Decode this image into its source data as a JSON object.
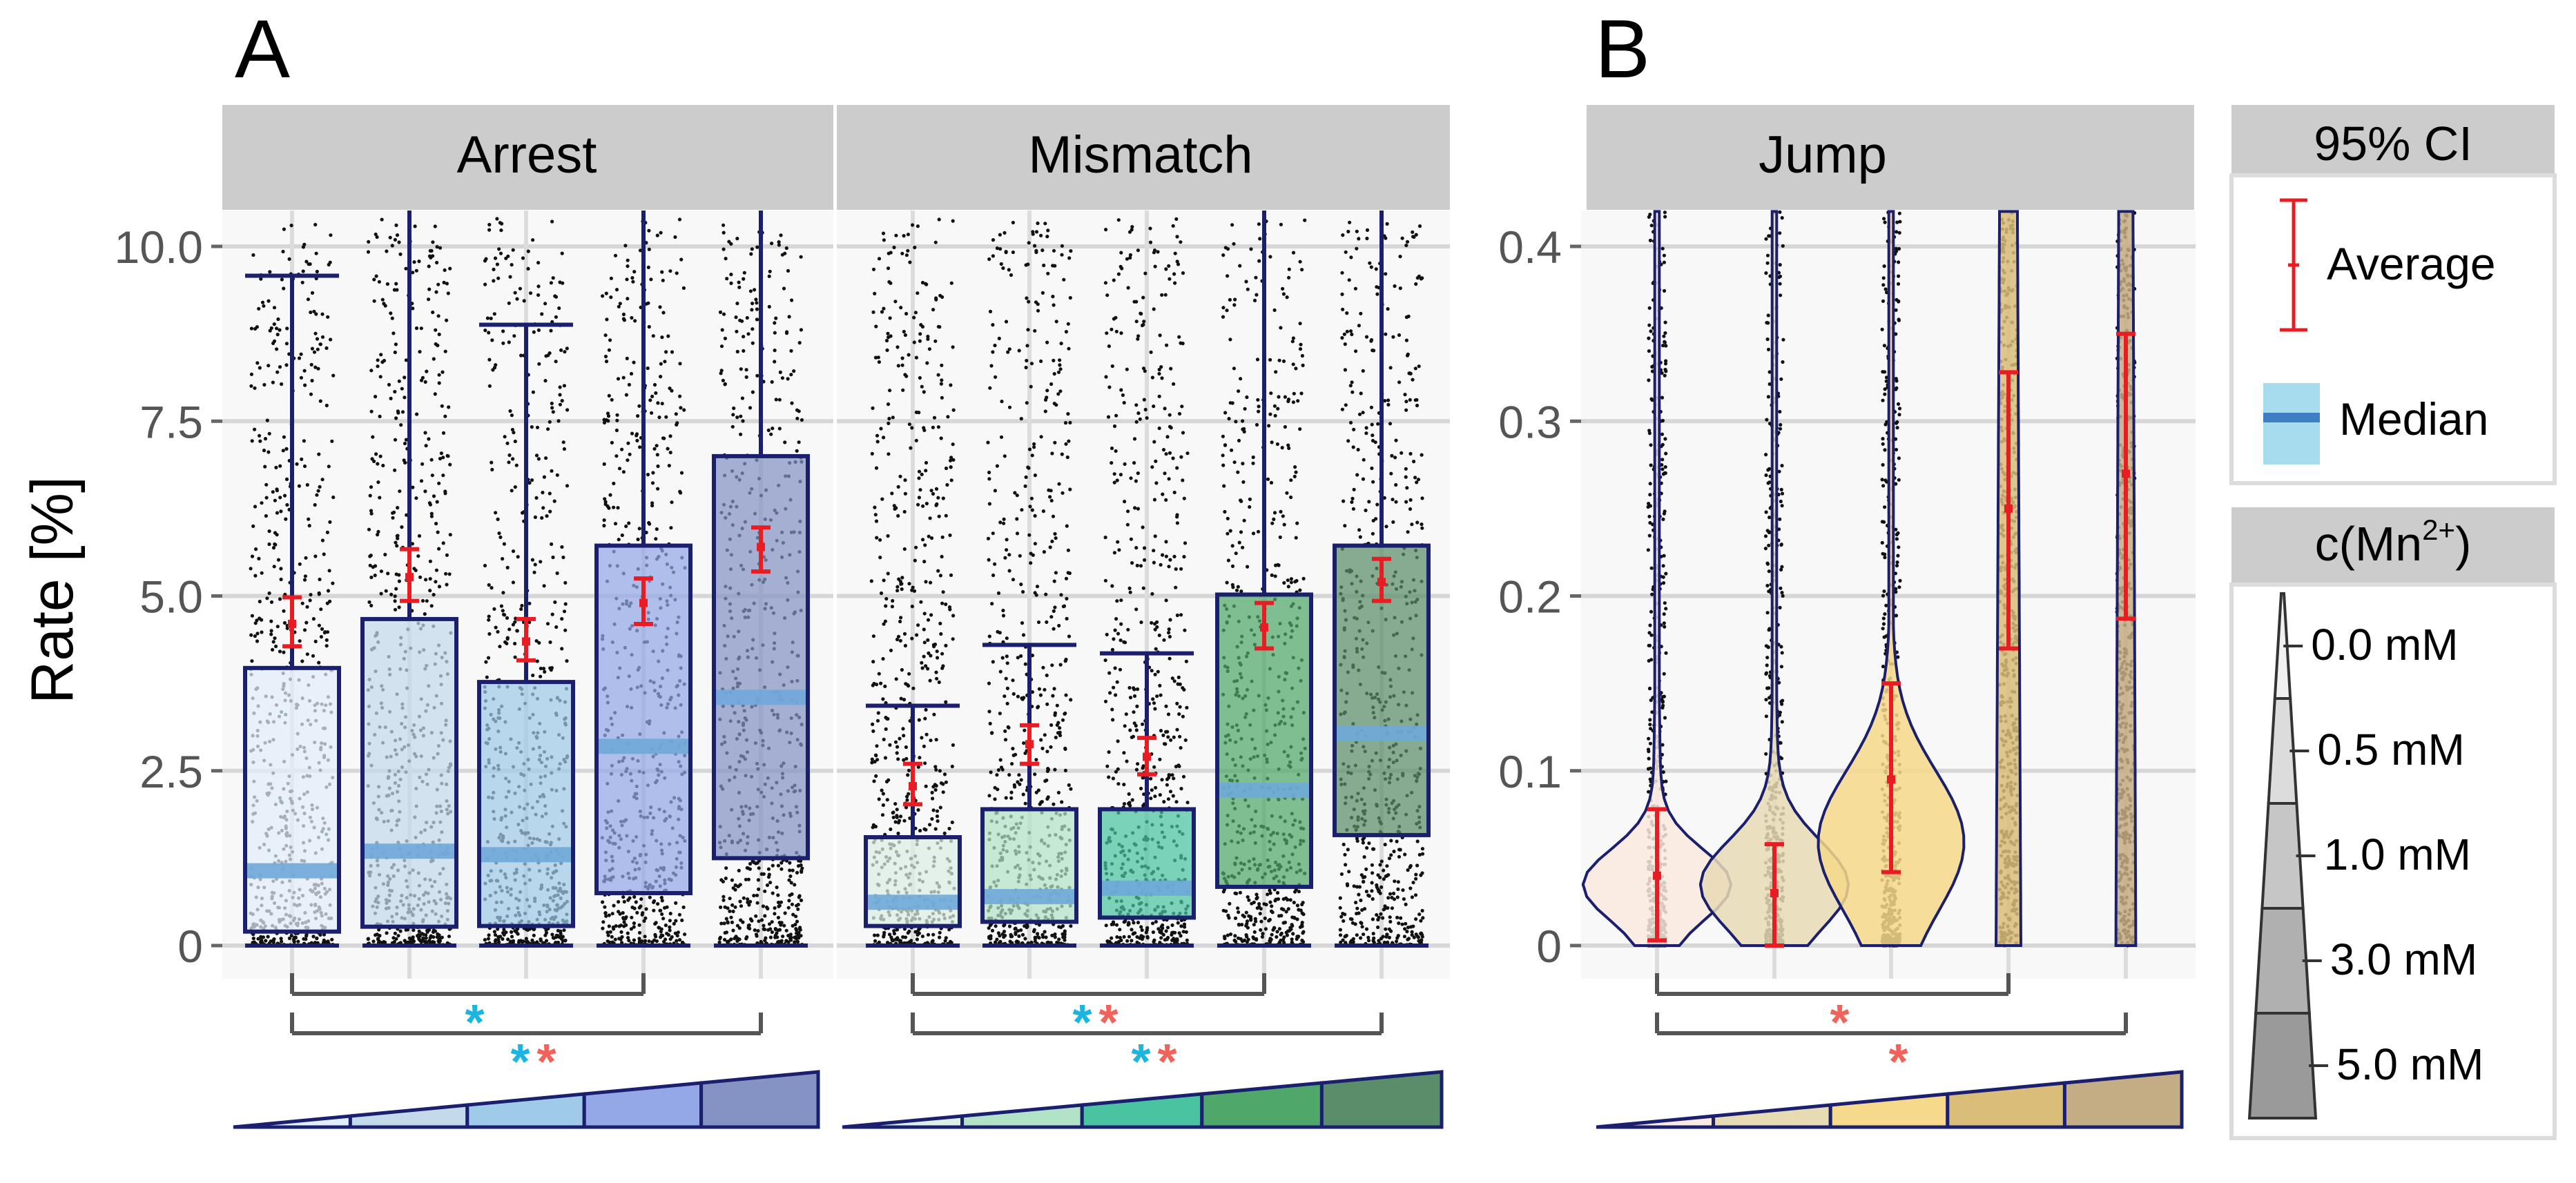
{
  "panels": {
    "a_label": "A",
    "b_label": "B"
  },
  "colors": {
    "strip": "#cccccc",
    "panel_bg": "#f8f8f8",
    "grid": "#d6d6d6",
    "axis_text": "#555555",
    "box_stroke": "#1a1f6e",
    "median": "#6fa8d9",
    "ci": "#e81c23",
    "star_cyan": "#1bb5e0",
    "star_red": "#f0625a",
    "bracket": "#555555"
  },
  "legend": {
    "ci_title": "95% CI",
    "average_label": "Average",
    "median_label": "Median",
    "conc_title_prefix": "c(Mn",
    "conc_title_sup": "2+",
    "conc_title_suffix": ")",
    "levels": [
      "0.0 mM",
      "0.5 mM",
      "1.0 mM",
      "3.0 mM",
      "5.0 mM"
    ]
  },
  "chart_data": [
    {
      "type": "box",
      "title": "Arrest",
      "ylabel": "Rate [%]",
      "ylim": [
        0,
        10.4
      ],
      "yticks": [
        0,
        2.5,
        5.0,
        7.5,
        10.0
      ],
      "ytick_labels": [
        "0",
        "2.5",
        "5.0",
        "7.5",
        "10.0"
      ],
      "categories": [
        "0.0 mM",
        "0.5 mM",
        "1.0 mM",
        "3.0 mM",
        "5.0 mM"
      ],
      "fill_colors": [
        "#e2eefb",
        "#c3daeb",
        "#9fcbe8",
        "#94a7e6",
        "#8493c3"
      ],
      "boxes": [
        {
          "q1": 0.2,
          "median": 1.07,
          "q3": 3.97,
          "whisker_high": 9.58,
          "mean": 4.6,
          "ci_low": 4.28,
          "ci_high": 4.98
        },
        {
          "q1": 0.27,
          "median": 1.35,
          "q3": 4.67,
          "whisker_high": null,
          "mean": 5.27,
          "ci_low": 4.93,
          "ci_high": 5.67
        },
        {
          "q1": 0.28,
          "median": 1.3,
          "q3": 3.77,
          "whisker_high": 8.88,
          "mean": 4.35,
          "ci_low": 4.08,
          "ci_high": 4.67
        },
        {
          "q1": 0.75,
          "median": 2.85,
          "q3": 5.72,
          "whisker_high": null,
          "mean": 4.9,
          "ci_low": 4.6,
          "ci_high": 5.25
        },
        {
          "q1": 1.25,
          "median": 3.55,
          "q3": 7.0,
          "whisker_high": null,
          "mean": 5.7,
          "ci_low": 5.35,
          "ci_high": 5.98
        }
      ],
      "comparisons": [
        {
          "from": 0,
          "to": 3,
          "stars": [
            "cyan"
          ]
        },
        {
          "from": 0,
          "to": 4,
          "stars": [
            "cyan",
            "red"
          ]
        }
      ]
    },
    {
      "type": "box",
      "title": "Mismatch",
      "ylim": [
        0,
        10.4
      ],
      "categories": [
        "0.0 mM",
        "0.5 mM",
        "1.0 mM",
        "3.0 mM",
        "5.0 mM"
      ],
      "fill_colors": [
        "#dcefe6",
        "#b3e3c6",
        "#49c3a0",
        "#4fa86a",
        "#5a8d69"
      ],
      "boxes": [
        {
          "q1": 0.28,
          "median": 0.62,
          "q3": 1.55,
          "whisker_high": 3.43,
          "mean": 2.28,
          "ci_low": 2.02,
          "ci_high": 2.6
        },
        {
          "q1": 0.34,
          "median": 0.7,
          "q3": 1.95,
          "whisker_high": 4.3,
          "mean": 2.88,
          "ci_low": 2.6,
          "ci_high": 3.15
        },
        {
          "q1": 0.4,
          "median": 0.82,
          "q3": 1.95,
          "whisker_high": 4.18,
          "mean": 2.7,
          "ci_low": 2.45,
          "ci_high": 2.97
        },
        {
          "q1": 0.84,
          "median": 2.22,
          "q3": 5.02,
          "whisker_high": null,
          "mean": 4.55,
          "ci_low": 4.25,
          "ci_high": 4.9
        },
        {
          "q1": 1.58,
          "median": 3.03,
          "q3": 5.72,
          "whisker_high": null,
          "mean": 5.2,
          "ci_low": 4.93,
          "ci_high": 5.53
        }
      ],
      "comparisons": [
        {
          "from": 0,
          "to": 3,
          "stars": [
            "cyan",
            "red"
          ]
        },
        {
          "from": 0,
          "to": 4,
          "stars": [
            "cyan",
            "red"
          ]
        }
      ]
    },
    {
      "type": "violin",
      "title": "Jump",
      "ylim": [
        0,
        0.42
      ],
      "yticks": [
        0,
        0.1,
        0.2,
        0.3,
        0.4
      ],
      "ytick_labels": [
        "0",
        "0.1",
        "0.2",
        "0.3",
        "0.4"
      ],
      "categories": [
        "0.0 mM",
        "0.5 mM",
        "1.0 mM",
        "3.0 mM",
        "5.0 mM"
      ],
      "fill_colors": [
        "#fbeadf",
        "#e7dbb4",
        "#f6d98a",
        "#dbbd7a",
        "#c4ad84"
      ],
      "max_half_widths": [
        0.55,
        0.55,
        0.55,
        0.1,
        0.08
      ],
      "means": [
        0.04,
        0.03,
        0.095,
        0.25,
        0.27
      ],
      "ci_lows": [
        0.003,
        0.0,
        0.042,
        0.17,
        0.187
      ],
      "ci_highs": [
        0.078,
        0.058,
        0.15,
        0.328,
        0.35
      ],
      "comparisons": [
        {
          "from": 0,
          "to": 3,
          "stars": [
            "red"
          ]
        },
        {
          "from": 0,
          "to": 4,
          "stars": [
            "red"
          ]
        }
      ]
    }
  ]
}
